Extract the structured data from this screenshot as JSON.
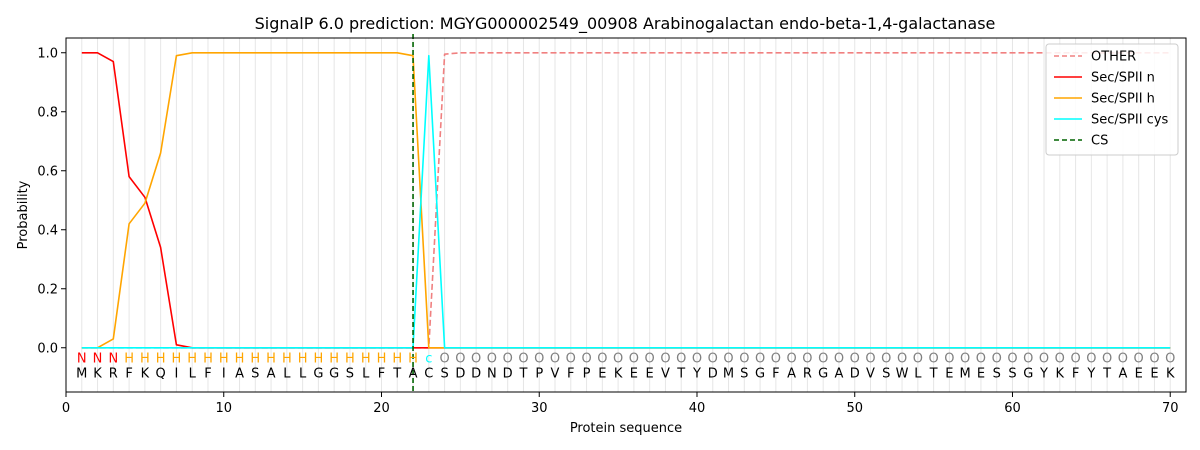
{
  "chart_data": {
    "type": "line",
    "title": "SignalP 6.0 prediction: MGYG000002549_00908 Arabinogalactan endo-beta-1,4-galactanase",
    "xlabel": "Protein sequence",
    "ylabel": "Probability",
    "xlim": [
      0,
      71
    ],
    "ylim": [
      -0.15,
      1.05
    ],
    "xticks": [
      "0",
      "10",
      "20",
      "30",
      "40",
      "50",
      "60",
      "70"
    ],
    "yticks": [
      "0.0",
      "0.2",
      "0.4",
      "0.6",
      "0.8",
      "1.0"
    ],
    "legend_position": "top-right",
    "sequence": [
      "M",
      "K",
      "R",
      "F",
      "K",
      "Q",
      "I",
      "L",
      "F",
      "I",
      "A",
      "S",
      "A",
      "L",
      "L",
      "G",
      "G",
      "S",
      "L",
      "F",
      "T",
      "A",
      "C",
      "S",
      "D",
      "D",
      "N",
      "D",
      "T",
      "P",
      "V",
      "F",
      "P",
      "E",
      "K",
      "E",
      "E",
      "V",
      "T",
      "Y",
      "D",
      "M",
      "S",
      "G",
      "F",
      "A",
      "R",
      "G",
      "A",
      "D",
      "V",
      "S",
      "W",
      "L",
      "T",
      "E",
      "M",
      "E",
      "S",
      "S",
      "G",
      "Y",
      "K",
      "F",
      "Y",
      "T",
      "A",
      "E",
      "E",
      "K"
    ],
    "labels": [
      "N",
      "N",
      "N",
      "H",
      "H",
      "H",
      "H",
      "H",
      "H",
      "H",
      "H",
      "H",
      "H",
      "H",
      "H",
      "H",
      "H",
      "H",
      "H",
      "H",
      "H",
      "H",
      "C",
      "O",
      "O",
      "O",
      "O",
      "O",
      "O",
      "O",
      "O",
      "O",
      "O",
      "O",
      "O",
      "O",
      "O",
      "O",
      "O",
      "O",
      "O",
      "O",
      "O",
      "O",
      "O",
      "O",
      "O",
      "O",
      "O",
      "O",
      "O",
      "O",
      "O",
      "O",
      "O",
      "O",
      "O",
      "O",
      "O",
      "O",
      "O",
      "O",
      "O",
      "O",
      "O",
      "O",
      "O",
      "O",
      "O",
      "O"
    ],
    "label_colors": {
      "N": "#ff0000",
      "H": "#ffa500",
      "C": "#00ffff",
      "O": "#808080"
    },
    "series": [
      {
        "name": "OTHER",
        "color": "#f08080",
        "dash": true,
        "values": [
          0,
          0,
          0,
          0,
          0,
          0,
          0,
          0,
          0,
          0,
          0,
          0,
          0,
          0,
          0,
          0,
          0,
          0,
          0,
          0,
          0,
          0,
          0,
          0.995,
          1,
          1,
          1,
          1,
          1,
          1,
          1,
          1,
          1,
          1,
          1,
          1,
          1,
          1,
          1,
          1,
          1,
          1,
          1,
          1,
          1,
          1,
          1,
          1,
          1,
          1,
          1,
          1,
          1,
          1,
          1,
          1,
          1,
          1,
          1,
          1,
          1,
          1,
          1,
          1,
          1,
          1,
          1,
          1,
          1,
          1
        ]
      },
      {
        "name": "Sec/SPII n",
        "color": "#ff0000",
        "dash": false,
        "values": [
          1,
          1,
          0.97,
          0.58,
          0.51,
          0.34,
          0.01,
          0,
          0,
          0,
          0,
          0,
          0,
          0,
          0,
          0,
          0,
          0,
          0,
          0,
          0,
          0,
          0,
          0,
          0,
          0,
          0,
          0,
          0,
          0,
          0,
          0,
          0,
          0,
          0,
          0,
          0,
          0,
          0,
          0,
          0,
          0,
          0,
          0,
          0,
          0,
          0,
          0,
          0,
          0,
          0,
          0,
          0,
          0,
          0,
          0,
          0,
          0,
          0,
          0,
          0,
          0,
          0,
          0,
          0,
          0,
          0,
          0,
          0,
          0
        ]
      },
      {
        "name": "Sec/SPII h",
        "color": "#ffa500",
        "dash": false,
        "values": [
          0,
          0,
          0.03,
          0.42,
          0.49,
          0.66,
          0.99,
          1,
          1,
          1,
          1,
          1,
          1,
          1,
          1,
          1,
          1,
          1,
          1,
          1,
          1,
          0.99,
          0,
          0,
          0,
          0,
          0,
          0,
          0,
          0,
          0,
          0,
          0,
          0,
          0,
          0,
          0,
          0,
          0,
          0,
          0,
          0,
          0,
          0,
          0,
          0,
          0,
          0,
          0,
          0,
          0,
          0,
          0,
          0,
          0,
          0,
          0,
          0,
          0,
          0,
          0,
          0,
          0,
          0,
          0,
          0,
          0,
          0,
          0,
          0
        ]
      },
      {
        "name": "Sec/SPII cys",
        "color": "#00ffff",
        "dash": false,
        "values": [
          0,
          0,
          0,
          0,
          0,
          0,
          0,
          0,
          0,
          0,
          0,
          0,
          0,
          0,
          0,
          0,
          0,
          0,
          0,
          0,
          0,
          0,
          0.99,
          0,
          0,
          0,
          0,
          0,
          0,
          0,
          0,
          0,
          0,
          0,
          0,
          0,
          0,
          0,
          0,
          0,
          0,
          0,
          0,
          0,
          0,
          0,
          0,
          0,
          0,
          0,
          0,
          0,
          0,
          0,
          0,
          0,
          0,
          0,
          0,
          0,
          0,
          0,
          0,
          0,
          0,
          0,
          0,
          0,
          0,
          0
        ]
      }
    ],
    "cs": {
      "name": "CS",
      "x": 22,
      "color": "#006400"
    }
  }
}
